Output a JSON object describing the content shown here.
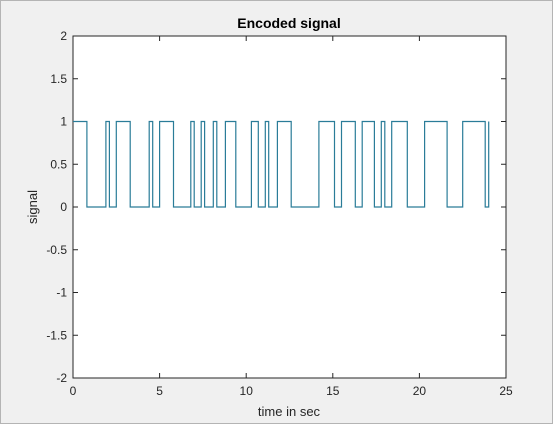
{
  "chart_data": {
    "type": "line",
    "title": "Encoded signal",
    "xlabel": "time in sec",
    "ylabel": "signal",
    "xlim": [
      0,
      25
    ],
    "ylim": [
      -2,
      2
    ],
    "xticks": [
      0,
      5,
      10,
      15,
      20,
      25
    ],
    "yticks": [
      -2,
      -1.5,
      -1,
      -0.5,
      0,
      0.5,
      1,
      1.5,
      2
    ],
    "grid": false,
    "step": true,
    "line_color": "#2a7c98",
    "series": [
      {
        "x": [
          0,
          0.8,
          1.9,
          2.1,
          2.5,
          3.3,
          4.4,
          4.6,
          5.0,
          5.8,
          6.8,
          7.0,
          7.4,
          7.6,
          8.1,
          8.3,
          8.8,
          9.4,
          10.3,
          10.7,
          11.1,
          11.3,
          11.8,
          12.6,
          14.2,
          15.1,
          15.5,
          16.3,
          16.7,
          17.4,
          17.8,
          18.0,
          18.4,
          19.3,
          20.3,
          21.6,
          22.5,
          23.8,
          24.0
        ],
        "values": [
          1,
          0,
          1,
          0,
          1,
          0,
          1,
          0,
          1,
          0,
          1,
          0,
          1,
          0,
          1,
          0,
          1,
          0,
          1,
          0,
          1,
          0,
          1,
          0,
          1,
          0,
          1,
          0,
          1,
          0,
          1,
          0,
          1,
          0,
          1,
          0,
          1,
          0,
          1
        ]
      }
    ]
  }
}
